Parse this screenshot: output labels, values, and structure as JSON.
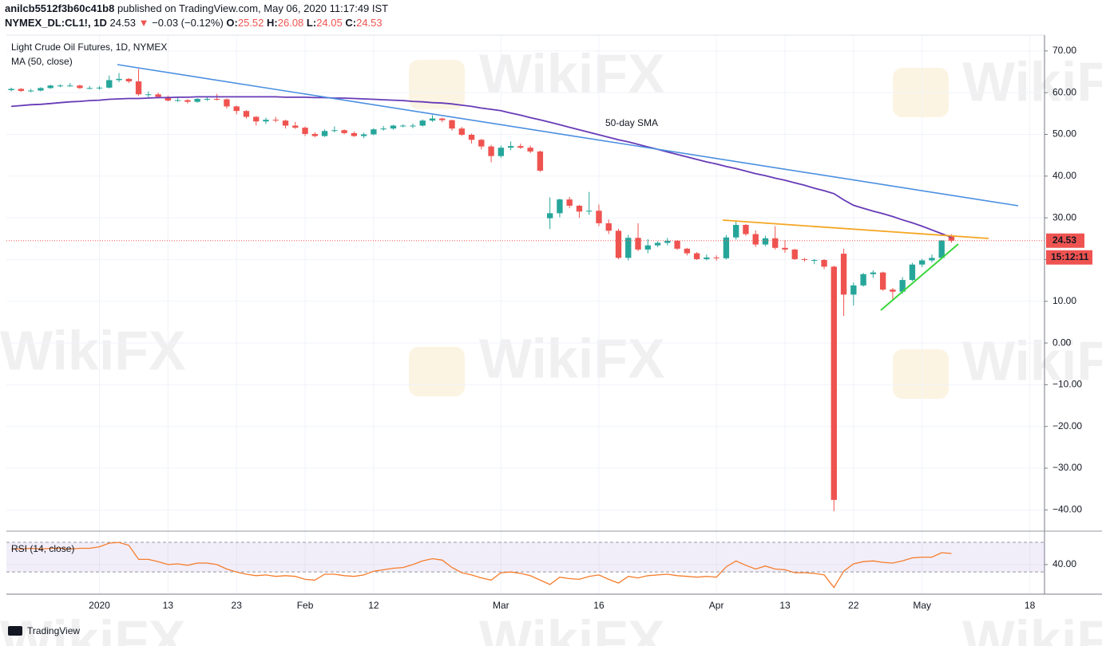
{
  "header": {
    "author": "anilcb5512f3b60c41b8",
    "published": "published on TradingView.com, May 06, 2020 11:17:49 IST",
    "symbol": "NYMEX_DL:CL1!, 1D",
    "price": 24.53,
    "arrow": "▼",
    "change": "−0.03 (−0.12%)",
    "ohlc": [
      {
        "key": "O:",
        "value": 25.52
      },
      {
        "key": "H:",
        "value": 26.08
      },
      {
        "key": "L:",
        "value": 24.05
      },
      {
        "key": "C:",
        "value": 24.53
      }
    ]
  },
  "watermark": "WikiFX",
  "footer": {
    "brand": "TradingView"
  },
  "chart_data": [
    {
      "type": "candlestick",
      "categories": [
        null,
        null,
        null,
        null,
        null,
        null,
        null,
        null,
        null,
        "2020",
        null,
        null,
        null,
        null,
        null,
        null,
        "13",
        null,
        null,
        null,
        null,
        null,
        null,
        "23",
        null,
        null,
        null,
        null,
        null,
        null,
        "Feb",
        null,
        null,
        null,
        null,
        null,
        null,
        "12",
        null,
        null,
        null,
        null,
        null,
        null,
        null,
        null,
        null,
        null,
        null,
        null,
        "Mar",
        null,
        null,
        null,
        null,
        null,
        null,
        null,
        null,
        null,
        "16",
        null,
        null,
        null,
        null,
        null,
        null,
        null,
        null,
        null,
        null,
        null,
        "Apr",
        null,
        null,
        null,
        null,
        null,
        null,
        "13",
        null,
        null,
        null,
        null,
        null,
        null,
        "22",
        null,
        null,
        null,
        null,
        null,
        null,
        "May",
        null,
        null,
        null,
        null,
        null,
        null,
        null,
        null,
        null,
        null,
        "18",
        null
      ],
      "series": [
        {
          "name": "Light Crude Oil Futures, 1D, NYMEX",
          "up_color": "#26a69a",
          "down_color": "#ef5350",
          "open": [
            60.6,
            60.9,
            60.4,
            60.5,
            61.1,
            61.7,
            61.7,
            61.7,
            61.1,
            61.1,
            61.2,
            63.0,
            63.3,
            62.7,
            59.6,
            59.6,
            59.0,
            58.1,
            58.2,
            57.8,
            58.5,
            58.5,
            58.4,
            56.7,
            55.6,
            54.2,
            53.1,
            53.5,
            53.3,
            52.1,
            51.6,
            50.1,
            49.6,
            50.8,
            51.0,
            50.3,
            49.6,
            50.0,
            51.2,
            51.4,
            52.1,
            52.1,
            52.1,
            53.3,
            53.8,
            53.4,
            51.4,
            49.9,
            48.7,
            47.1,
            44.8,
            46.8,
            47.2,
            46.8,
            45.9,
            29.9,
            31.1,
            34.4,
            32.9,
            31.5,
            31.7,
            28.7,
            26.9,
            20.4,
            25.2,
            22.4,
            23.4,
            24.0,
            24.5,
            22.6,
            21.5,
            20.1,
            20.5,
            20.3,
            25.3,
            28.3,
            26.1,
            23.6,
            25.1,
            22.8,
            22.4,
            20.1,
            19.9,
            19.9,
            18.3,
            21.4,
            11.6,
            13.8,
            16.5,
            16.9,
            12.8,
            12.3,
            15.1,
            18.8,
            19.8,
            20.4,
            25.52,
            null,
            null,
            null,
            null,
            null,
            null,
            null,
            null,
            null
          ],
          "high": [
            61.2,
            61.1,
            60.9,
            61.3,
            61.9,
            62.0,
            62.3,
            61.9,
            61.6,
            61.6,
            64.1,
            64.7,
            63.5,
            65.7,
            60.3,
            60.0,
            59.3,
            58.9,
            58.4,
            58.7,
            59.0,
            59.7,
            58.6,
            56.9,
            55.8,
            54.4,
            54.0,
            54.2,
            53.5,
            53.0,
            51.9,
            50.5,
            51.2,
            51.9,
            51.2,
            50.7,
            50.4,
            51.5,
            52.0,
            52.3,
            52.4,
            52.6,
            53.6,
            54.6,
            54.0,
            53.5,
            51.8,
            50.2,
            48.9,
            47.5,
            47.3,
            48.3,
            47.8,
            47.3,
            46.1,
            34.9,
            34.6,
            35.0,
            33.1,
            36.2,
            33.2,
            29.6,
            27.4,
            25.9,
            28.7,
            24.9,
            24.4,
            25.2,
            24.7,
            22.8,
            21.8,
            21.2,
            21.0,
            25.9,
            29.1,
            28.5,
            27.0,
            25.7,
            28.0,
            24.7,
            22.6,
            20.4,
            20.1,
            20.1,
            18.5,
            22.6,
            14.5,
            16.8,
            17.4,
            17.1,
            13.2,
            15.8,
            19.2,
            20.2,
            21.2,
            24.7,
            26.08,
            null,
            null,
            null,
            null,
            null,
            null,
            null,
            null,
            null
          ],
          "low": [
            60.3,
            60.2,
            60.1,
            60.3,
            60.9,
            61.3,
            61.4,
            60.9,
            60.8,
            60.7,
            61.0,
            62.5,
            62.3,
            59.2,
            58.9,
            58.6,
            57.9,
            57.8,
            57.4,
            57.6,
            58.0,
            58.1,
            56.2,
            54.8,
            53.8,
            52.1,
            52.5,
            52.9,
            51.4,
            51.3,
            49.6,
            49.3,
            49.4,
            50.5,
            50.0,
            49.4,
            49.1,
            49.8,
            50.9,
            51.1,
            51.7,
            51.5,
            51.9,
            53.0,
            52.9,
            50.9,
            49.6,
            47.8,
            46.4,
            43.3,
            44.4,
            46.2,
            46.5,
            45.5,
            41.0,
            27.3,
            30.1,
            32.3,
            30.0,
            30.7,
            28.0,
            26.1,
            20.1,
            19.8,
            22.0,
            21.5,
            23.0,
            23.4,
            22.3,
            21.0,
            19.9,
            19.8,
            19.7,
            20.0,
            24.8,
            25.7,
            23.0,
            23.2,
            22.4,
            21.6,
            19.9,
            19.5,
            18.9,
            17.7,
            -40.3,
            6.5,
            9.0,
            13.5,
            15.6,
            12.5,
            10.3,
            11.8,
            14.8,
            18.2,
            19.3,
            20.1,
            24.05,
            null,
            null,
            null,
            null,
            null,
            null,
            null,
            null,
            null
          ],
          "close": [
            60.9,
            60.4,
            60.5,
            61.1,
            61.7,
            61.7,
            61.7,
            61.1,
            61.1,
            61.2,
            63.0,
            63.3,
            62.7,
            59.6,
            59.6,
            59.0,
            58.1,
            58.2,
            57.8,
            58.5,
            58.5,
            58.4,
            56.7,
            55.6,
            54.2,
            53.1,
            53.5,
            53.3,
            52.1,
            51.6,
            50.1,
            49.6,
            50.8,
            51.0,
            50.3,
            49.6,
            50.0,
            51.2,
            51.4,
            52.1,
            52.1,
            52.1,
            53.3,
            53.8,
            53.4,
            51.4,
            49.9,
            48.7,
            47.1,
            44.8,
            46.8,
            47.2,
            46.8,
            45.9,
            41.3,
            31.1,
            34.4,
            32.9,
            31.5,
            31.7,
            28.7,
            26.9,
            20.4,
            25.2,
            22.4,
            23.4,
            24.0,
            24.5,
            22.6,
            21.5,
            20.1,
            20.5,
            20.3,
            25.3,
            28.3,
            26.1,
            23.6,
            25.1,
            22.8,
            22.4,
            20.1,
            19.9,
            19.9,
            18.3,
            -37.6,
            11.6,
            13.8,
            16.5,
            16.9,
            12.8,
            12.3,
            15.1,
            18.8,
            19.8,
            20.4,
            24.56,
            24.53,
            null,
            null,
            null,
            null,
            null,
            null,
            null,
            null,
            null
          ]
        },
        {
          "name": "MA (50, close)",
          "color": "#673ab7",
          "values": [
            56.7,
            56.9,
            57.1,
            57.2,
            57.4,
            57.6,
            57.8,
            57.9,
            58.1,
            58.2,
            58.4,
            58.5,
            58.6,
            58.6,
            58.7,
            58.8,
            58.8,
            58.9,
            58.9,
            59.0,
            59.0,
            59.0,
            59.0,
            59.0,
            59.0,
            59.0,
            59.0,
            59.0,
            58.9,
            58.9,
            58.9,
            58.8,
            58.8,
            58.7,
            58.7,
            58.6,
            58.5,
            58.4,
            58.3,
            58.2,
            58.1,
            57.9,
            57.8,
            57.6,
            57.5,
            57.3,
            57.0,
            56.7,
            56.3,
            56.0,
            55.7,
            55.1,
            54.6,
            54.0,
            53.5,
            52.9,
            52.3,
            51.7,
            51.1,
            50.5,
            49.9,
            49.3,
            48.7,
            48.2,
            47.6,
            47.0,
            46.4,
            45.8,
            45.2,
            44.6,
            44.0,
            43.4,
            42.9,
            42.3,
            41.8,
            41.2,
            40.6,
            40.1,
            39.5,
            39.0,
            38.4,
            37.8,
            37.1,
            36.5,
            35.8,
            34.3,
            33.0,
            32.3,
            31.6,
            31.0,
            30.3,
            29.5,
            28.8,
            28.0,
            27.1,
            26.2,
            25.3,
            null,
            null,
            null,
            null,
            null,
            null,
            null,
            null,
            null
          ]
        }
      ],
      "annotations": [
        {
          "text": "50-day SMA",
          "color": "#673ab7"
        }
      ],
      "last_price": 24.53,
      "countdown": "15:12:11",
      "ylim": [
        -44.9,
        73.6
      ],
      "yticks": [
        {
          "value": -40,
          "label": "−40.00"
        },
        {
          "value": -30,
          "label": "−30.00"
        },
        {
          "value": -20,
          "label": "−20.00"
        },
        {
          "value": -10,
          "label": "−10.00"
        },
        {
          "value": 0,
          "label": "0.00"
        },
        {
          "value": 10,
          "label": "10.00"
        },
        {
          "value": 20,
          "label": "20.00"
        },
        {
          "value": 30,
          "label": "30.00"
        },
        {
          "value": 40,
          "label": "40.00"
        },
        {
          "value": 50,
          "label": "50.00"
        },
        {
          "value": 60,
          "label": "60.00"
        },
        {
          "value": 70,
          "label": "70.00"
        }
      ],
      "grid": true
    },
    {
      "type": "line",
      "series": [
        {
          "name": "RSI (14, close)",
          "color": "#f57c2c",
          "values": [
            61,
            61,
            62,
            61,
            62,
            62,
            61,
            62,
            62,
            64,
            69,
            70,
            66,
            47,
            47,
            44,
            40,
            41,
            39,
            42,
            42,
            40,
            34,
            30,
            27,
            25,
            26,
            24,
            25,
            24,
            20,
            19,
            27,
            27,
            25,
            24,
            26,
            31,
            33,
            35,
            36,
            40,
            45,
            48,
            46,
            36,
            29,
            26,
            22,
            19,
            29,
            30,
            28,
            25,
            19,
            13,
            23,
            21,
            20,
            24,
            26,
            20,
            15,
            24,
            22,
            25,
            26,
            27,
            25,
            24,
            23,
            24,
            23,
            37,
            45,
            39,
            34,
            38,
            34,
            33,
            29,
            29,
            28,
            26,
            9,
            31,
            41,
            44,
            45,
            43,
            42,
            45,
            49,
            50,
            50,
            56,
            55,
            null,
            null,
            null,
            null,
            null,
            null,
            null,
            null,
            null
          ]
        }
      ],
      "bands": [
        30,
        70
      ],
      "band_color": "#7e57c2",
      "ylim": [
        0,
        83
      ],
      "yticks": [
        {
          "value": 40,
          "label": "40.00"
        }
      ]
    }
  ]
}
